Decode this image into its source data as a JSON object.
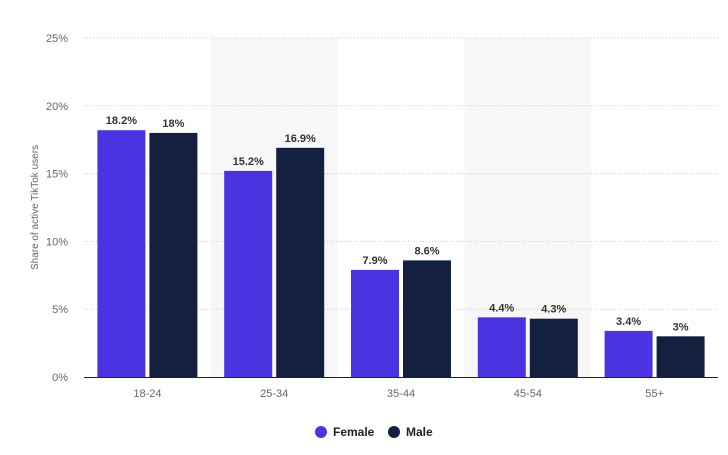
{
  "chart_data": {
    "type": "bar",
    "ylabel": "Share of active TikTok users",
    "ylim": [
      0,
      25
    ],
    "yticks": [
      0,
      5,
      10,
      15,
      20,
      25
    ],
    "ytick_labels": [
      "0%",
      "5%",
      "10%",
      "15%",
      "20%",
      "25%"
    ],
    "categories": [
      "18-24",
      "25-34",
      "35-44",
      "45-54",
      "55+"
    ],
    "series": [
      {
        "name": "Female",
        "color": "#4a34e2",
        "values": [
          18.2,
          15.2,
          7.9,
          4.4,
          3.4
        ],
        "labels": [
          "18.2%",
          "15.2%",
          "7.9%",
          "4.4%",
          "3.4%"
        ]
      },
      {
        "name": "Male",
        "color": "#14203f",
        "values": [
          18,
          16.9,
          8.6,
          4.3,
          3
        ],
        "labels": [
          "18%",
          "16.9%",
          "8.6%",
          "4.3%",
          "3%"
        ]
      }
    ],
    "grid": true,
    "legend_position": "bottom-center",
    "colors": {
      "grid": "#c9c9c9",
      "axis": "#222222",
      "band": "#f7f7f7",
      "tick_text": "#666666",
      "value_text": "#333333",
      "legend_text": "#222222"
    }
  }
}
